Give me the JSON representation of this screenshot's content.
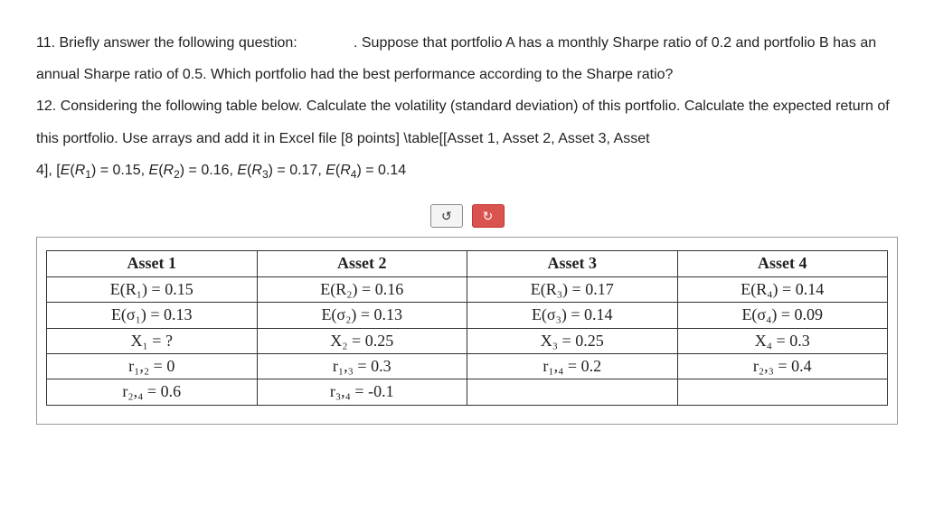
{
  "paragraph": {
    "q11_label": "11.  Briefly answer the following question:",
    "q11_gap": "              ",
    "q11_text": ". Suppose that portfolio A has a monthly Sharpe ratio of 0.2 and portfolio B has an annual Sharpe ratio of 0.5.  Which portfolio had the best performance according to the Sharpe ratio?",
    "q12_text": "12.  Considering the following table below. Calculate the volatility (standard deviation) of this portfolio. Calculate the expected return of this portfolio. Use arrays and add it in Excel file [8 points] \\table[[Asset 1, Asset 2, Asset 3, Asset",
    "formula_prefix": "4], [",
    "formula_e": "E",
    "formula_r": "R",
    "formula_lp": "(",
    "formula_rp": ")",
    "eq": " = ",
    "v1": "0.15",
    "v2": "0.16",
    "v3": "0.17",
    "v4": "0.14",
    "s1": "1",
    "s2": "2",
    "s3": "3",
    "s4": "4",
    "comma": ", "
  },
  "controls": {
    "undo_glyph": "↻",
    "redo_glyph": "↻"
  },
  "table": {
    "headers": [
      "Asset 1",
      "Asset 2",
      "Asset 3",
      "Asset 4"
    ],
    "rows": [
      [
        "E(R₁) = 0.15",
        "E(R₂) = 0.16",
        "E(R₃) = 0.17",
        "E(R₄) = 0.14"
      ],
      [
        "E(σ₁) = 0.13",
        "E(σ₂) = 0.13",
        "E(σ₃) = 0.14",
        "E(σ₄) = 0.09"
      ],
      [
        "X₁ = ?",
        "X₂ = 0.25",
        "X₃ = 0.25",
        "X₄ = 0.3"
      ],
      [
        "r₁,₂ = 0",
        "r₁,₃ = 0.3",
        "r₁,₄ = 0.2",
        "r₂,₃ = 0.4"
      ],
      [
        "r₂,₄ = 0.6",
        "r₃,₄ = -0.1",
        "",
        ""
      ]
    ],
    "border_color": "#333333",
    "header_fontweight": "bold",
    "cell_fontsize": 18,
    "font_family": "Times New Roman"
  }
}
